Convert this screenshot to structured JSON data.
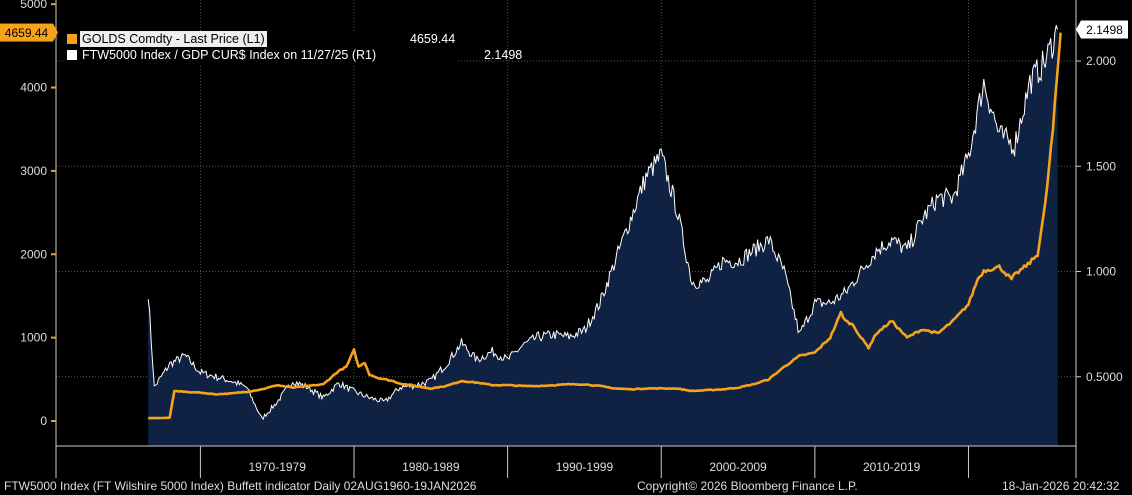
{
  "chart_data": {
    "type": "line",
    "title": "FTW5000 Index (FT Wilshire 5000 Index) Buffett indicator Daily 02AUG1960-19JAN2026",
    "x_categories": [
      "1970-1979",
      "1980-1989",
      "1990-1999",
      "2000-2009",
      "2010-2019"
    ],
    "left_axis": {
      "ylim": [
        -300,
        5050
      ],
      "ticks": [
        "0",
        "1000",
        "2000",
        "3000",
        "4000",
        "5000"
      ],
      "tick_values": [
        0,
        1000,
        2000,
        3000,
        4000,
        5000
      ]
    },
    "right_axis": {
      "ylim": [
        0.171,
        2.29
      ],
      "ticks": [
        "0.5000",
        "1.000",
        "1.500",
        "2.000"
      ],
      "tick_values": [
        0.5,
        1.0,
        1.5,
        2.0
      ]
    },
    "series": [
      {
        "name": "GOLDS Comdty - Last Price (L1)",
        "axis": "left",
        "color": "#f7a21b",
        "last_value": "4659.44",
        "x": [
          1966.6,
          1967.5,
          1968.0,
          1968.3,
          1969.0,
          1970.0,
          1971.0,
          1972.0,
          1973.0,
          1974.0,
          1975.0,
          1976.0,
          1977.0,
          1978.0,
          1979.0,
          1979.5,
          1980.0,
          1980.3,
          1980.7,
          1981.0,
          1981.5,
          1982.0,
          1982.5,
          1983.0,
          1984.0,
          1985.0,
          1986.0,
          1987.0,
          1988.0,
          1989.0,
          1990.0,
          1991.0,
          1992.0,
          1993.0,
          1994.0,
          1995.0,
          1996.0,
          1997.0,
          1998.0,
          1999.0,
          2000.0,
          2001.0,
          2002.0,
          2003.0,
          2004.0,
          2005.0,
          2006.0,
          2007.0,
          2008.0,
          2009.0,
          2010.0,
          2011.0,
          2011.7,
          2012.0,
          2012.5,
          2013.0,
          2013.5,
          2014.0,
          2015.0,
          2016.0,
          2017.0,
          2018.0,
          2019.0,
          2019.5,
          2020.0,
          2020.6,
          2021.0,
          2022.0,
          2022.8,
          2023.0,
          2024.0,
          2024.5,
          2025.0,
          2025.5,
          2026.0
        ],
        "values": [
          35,
          35,
          40,
          360,
          350,
          340,
          320,
          330,
          350,
          380,
          430,
          400,
          420,
          440,
          600,
          650,
          850,
          650,
          700,
          560,
          520,
          500,
          480,
          450,
          420,
          390,
          420,
          480,
          460,
          430,
          430,
          420,
          420,
          430,
          440,
          440,
          420,
          390,
          380,
          390,
          390,
          390,
          360,
          370,
          380,
          400,
          440,
          500,
          650,
          780,
          820,
          1000,
          1300,
          1200,
          1150,
          1000,
          880,
          1050,
          1200,
          1000,
          1100,
          1050,
          1200,
          1300,
          1400,
          1700,
          1800,
          1850,
          1700,
          1750,
          1900,
          2000,
          2600,
          3500,
          4659
        ]
      },
      {
        "name": "FTW5000 Index / GDP CUR$ Index on 11/27/25 (R1)",
        "axis": "right",
        "color": "#ffffff",
        "area_fill": "#0f2244",
        "last_value": "2.1498",
        "x": [
          1966.6,
          1967.0,
          1968.0,
          1969.0,
          1970.0,
          1971.0,
          1972.0,
          1973.0,
          1974.0,
          1975.0,
          1976.0,
          1977.0,
          1978.0,
          1979.0,
          1980.0,
          1981.0,
          1982.0,
          1983.0,
          1984.0,
          1985.0,
          1986.0,
          1987.0,
          1988.0,
          1989.0,
          1990.0,
          1991.0,
          1992.0,
          1993.0,
          1994.0,
          1995.0,
          1996.0,
          1997.0,
          1998.0,
          1999.0,
          2000.0,
          2001.0,
          2002.0,
          2003.0,
          2004.0,
          2005.0,
          2006.0,
          2007.0,
          2008.0,
          2009.0,
          2010.0,
          2011.0,
          2012.0,
          2013.0,
          2014.0,
          2015.0,
          2016.0,
          2017.0,
          2018.0,
          2019.0,
          2020.0,
          2021.0,
          2022.0,
          2023.0,
          2024.0,
          2025.0,
          2025.8
        ],
        "values": [
          0.9,
          0.45,
          0.56,
          0.6,
          0.52,
          0.5,
          0.48,
          0.45,
          0.3,
          0.38,
          0.48,
          0.45,
          0.4,
          0.47,
          0.43,
          0.4,
          0.38,
          0.45,
          0.46,
          0.48,
          0.56,
          0.66,
          0.58,
          0.62,
          0.58,
          0.65,
          0.69,
          0.7,
          0.69,
          0.72,
          0.85,
          1.05,
          1.25,
          1.45,
          1.55,
          1.3,
          0.95,
          0.95,
          1.05,
          1.05,
          1.1,
          1.15,
          1.0,
          0.7,
          0.85,
          0.85,
          0.9,
          1.0,
          1.1,
          1.15,
          1.1,
          1.25,
          1.35,
          1.35,
          1.55,
          1.9,
          1.65,
          1.6,
          1.9,
          2.0,
          2.1498
        ]
      }
    ]
  },
  "footer": {
    "left": "FTW5000 Index (FT Wilshire 5000 Index) Buffett indicator Daily 02AUG1960-19JAN2026",
    "copyright": "Copyright© 2026 Bloomberg Finance L.P.",
    "timestamp": "18-Jan-2026 20:42:32"
  }
}
